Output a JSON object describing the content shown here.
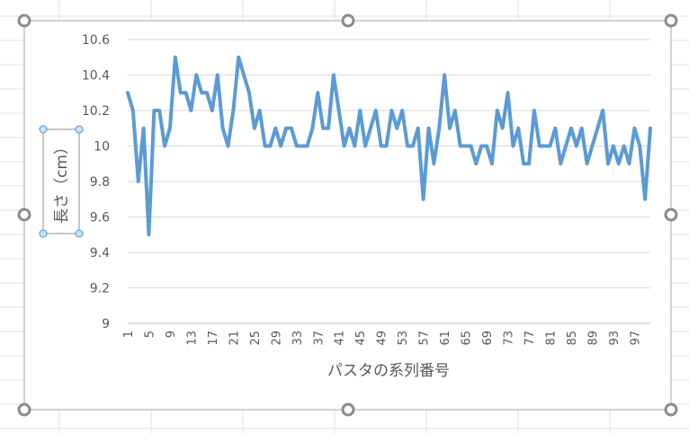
{
  "chart_data": {
    "type": "line",
    "title": "",
    "xlabel": "パスタの系列番号",
    "ylabel": "長さ（cm）",
    "ylim": [
      9,
      10.6
    ],
    "y_ticks": [
      "9",
      "9.2",
      "9.4",
      "9.6",
      "9.8",
      "10",
      "10.2",
      "10.4",
      "10.6"
    ],
    "x_tick_labels": [
      "1",
      "5",
      "9",
      "13",
      "17",
      "21",
      "25",
      "29",
      "33",
      "37",
      "41",
      "45",
      "49",
      "53",
      "57",
      "61",
      "65",
      "69",
      "73",
      "77",
      "81",
      "85",
      "89",
      "93",
      "97"
    ],
    "x": [
      1,
      2,
      3,
      4,
      5,
      6,
      7,
      8,
      9,
      10,
      11,
      12,
      13,
      14,
      15,
      16,
      17,
      18,
      19,
      20,
      21,
      22,
      23,
      24,
      25,
      26,
      27,
      28,
      29,
      30,
      31,
      32,
      33,
      34,
      35,
      36,
      37,
      38,
      39,
      40,
      41,
      42,
      43,
      44,
      45,
      46,
      47,
      48,
      49,
      50,
      51,
      52,
      53,
      54,
      55,
      56,
      57,
      58,
      59,
      60,
      61,
      62,
      63,
      64,
      65,
      66,
      67,
      68,
      69,
      70,
      71,
      72,
      73,
      74,
      75,
      76,
      77,
      78,
      79,
      80,
      81,
      82,
      83,
      84,
      85,
      86,
      87,
      88,
      89,
      90,
      91,
      92,
      93,
      94,
      95,
      96,
      97,
      98,
      99,
      100
    ],
    "series": [
      {
        "name": "",
        "color": "#5b9bd5",
        "values": [
          10.3,
          10.2,
          9.8,
          10.1,
          9.5,
          10.2,
          10.2,
          10.0,
          10.1,
          10.5,
          10.3,
          10.3,
          10.2,
          10.4,
          10.3,
          10.3,
          10.2,
          10.4,
          10.1,
          10.0,
          10.2,
          10.5,
          10.4,
          10.3,
          10.1,
          10.2,
          10.0,
          10.0,
          10.1,
          10.0,
          10.1,
          10.1,
          10.0,
          10.0,
          10.0,
          10.1,
          10.3,
          10.1,
          10.1,
          10.4,
          10.2,
          10.0,
          10.1,
          10.0,
          10.2,
          10.0,
          10.1,
          10.2,
          10.0,
          10.0,
          10.2,
          10.1,
          10.2,
          10.0,
          10.0,
          10.1,
          9.7,
          10.1,
          9.9,
          10.1,
          10.4,
          10.1,
          10.2,
          10.0,
          10.0,
          10.0,
          9.9,
          10.0,
          10.0,
          9.9,
          10.2,
          10.1,
          10.3,
          10.0,
          10.1,
          9.9,
          9.9,
          10.2,
          10.0,
          10.0,
          10.0,
          10.1,
          9.9,
          10.0,
          10.1,
          10.0,
          10.1,
          9.9,
          10.0,
          10.1,
          10.2,
          9.9,
          10.0,
          9.9,
          10.0,
          9.9,
          10.1,
          10.0,
          9.7,
          10.1
        ]
      }
    ],
    "grid": true,
    "legend": "none"
  }
}
